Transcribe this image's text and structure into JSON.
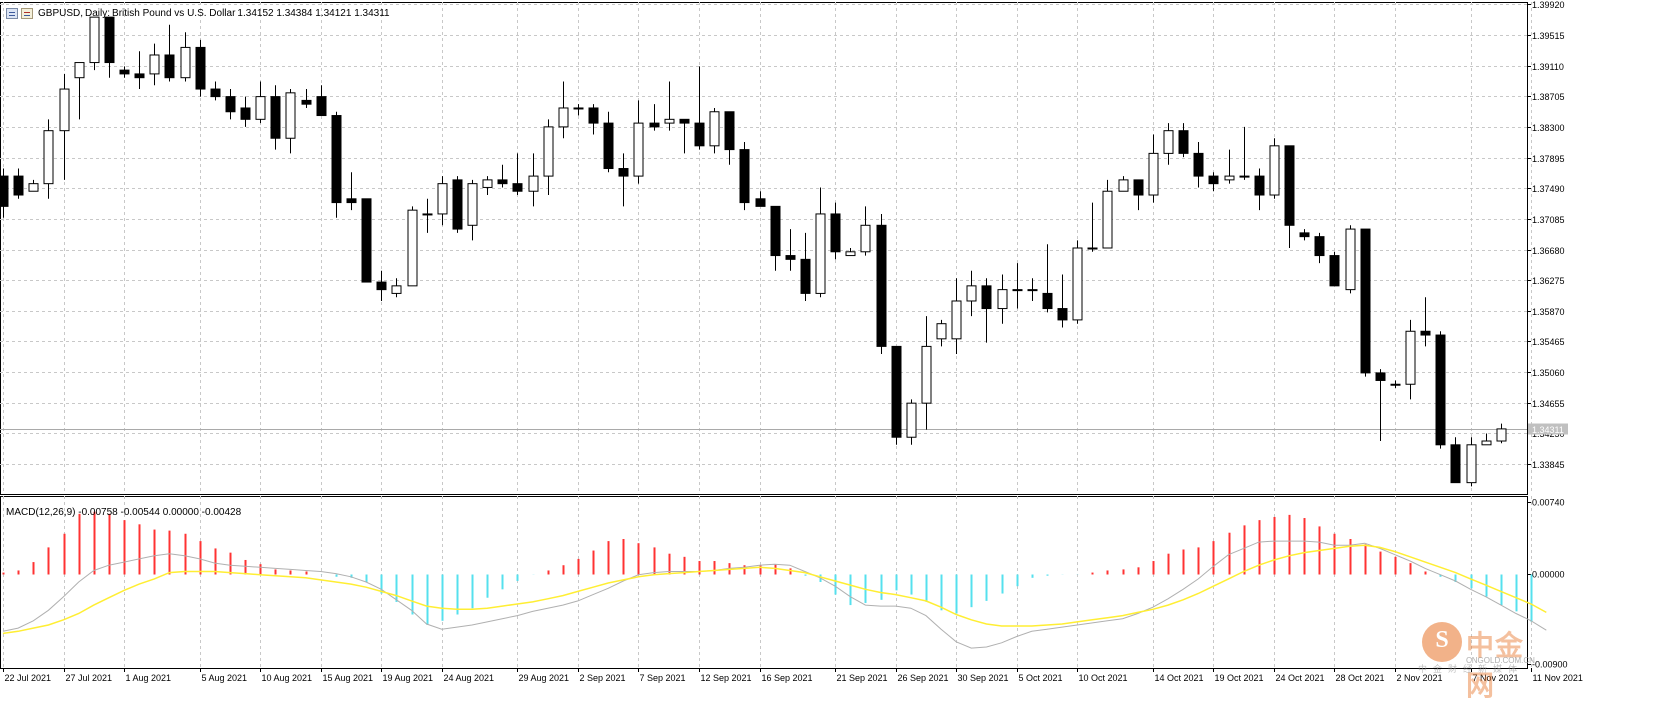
{
  "header": {
    "symbol": "GBPUSD,",
    "timeframe": "Daily:",
    "description": "British Pound vs U.S. Dollar",
    "ohlc": "1.34152 1.34384 1.34121 1.34311"
  },
  "macd_header": "MACD(12,26,9) -0.00758 -0.00544 0.00000 -0.00428",
  "price_axis": {
    "labels": [
      "1.39920",
      "1.39515",
      "1.39110",
      "1.38705",
      "1.38300",
      "1.37895",
      "1.37490",
      "1.37085",
      "1.36680",
      "1.36275",
      "1.35870",
      "1.35465",
      "1.35060",
      "1.34655",
      "1.34250",
      "1.33845"
    ],
    "current": "1.34311"
  },
  "macd_axis": {
    "labels": [
      "0.00740",
      "0.00000",
      "-0.00900"
    ]
  },
  "date_axis": [
    "22 Jul 2021",
    "27 Jul 2021",
    "1 Aug 2021",
    "5 Aug 2021",
    "10 Aug 2021",
    "15 Aug 2021",
    "19 Aug 2021",
    "24 Aug 2021",
    "29 Aug 2021",
    "2 Sep 2021",
    "7 Sep 2021",
    "12 Sep 2021",
    "16 Sep 2021",
    "21 Sep 2021",
    "26 Sep 2021",
    "30 Sep 2021",
    "5 Oct 2021",
    "10 Oct 2021",
    "14 Oct 2021",
    "19 Oct 2021",
    "24 Oct 2021",
    "28 Oct 2021",
    "2 Nov 2021",
    "7 Nov 2021",
    "11 Nov 2021"
  ],
  "colors": {
    "macd_pos": "#ff3333",
    "macd_neg": "#55e0ee",
    "signal": "#ffee33",
    "macd_line": "#b0b0b0",
    "grid": "#c8c8c8"
  },
  "logo": {
    "name": "中金网",
    "site": "CNGOLD.COM.CN",
    "sub": "中金财经新媒体",
    "icon": "cngold-logo-icon"
  },
  "chart_data": [
    {
      "type": "candlestick",
      "title": "GBPUSD, Daily: British Pound vs U.S. Dollar",
      "ylim": [
        1.3345,
        1.3995
      ],
      "candles": [
        {
          "o": 1.3765,
          "h": 1.3775,
          "l": 1.371,
          "c": 1.3725
        },
        {
          "o": 1.3765,
          "h": 1.3775,
          "l": 1.3735,
          "c": 1.374
        },
        {
          "o": 1.3745,
          "h": 1.376,
          "l": 1.3745,
          "c": 1.3755
        },
        {
          "o": 1.3755,
          "h": 1.384,
          "l": 1.3735,
          "c": 1.3825
        },
        {
          "o": 1.3825,
          "h": 1.39,
          "l": 1.376,
          "c": 1.388
        },
        {
          "o": 1.3895,
          "h": 1.3915,
          "l": 1.384,
          "c": 1.3915
        },
        {
          "o": 1.3915,
          "h": 1.3975,
          "l": 1.3905,
          "c": 1.3975
        },
        {
          "o": 1.3975,
          "h": 1.3975,
          "l": 1.3895,
          "c": 1.3915
        },
        {
          "o": 1.3905,
          "h": 1.391,
          "l": 1.3895,
          "c": 1.39
        },
        {
          "o": 1.39,
          "h": 1.393,
          "l": 1.388,
          "c": 1.3895
        },
        {
          "o": 1.39,
          "h": 1.394,
          "l": 1.3885,
          "c": 1.3925
        },
        {
          "o": 1.3925,
          "h": 1.3965,
          "l": 1.389,
          "c": 1.3895
        },
        {
          "o": 1.3895,
          "h": 1.3955,
          "l": 1.389,
          "c": 1.3935
        },
        {
          "o": 1.3935,
          "h": 1.3945,
          "l": 1.387,
          "c": 1.388
        },
        {
          "o": 1.388,
          "h": 1.389,
          "l": 1.3865,
          "c": 1.387
        },
        {
          "o": 1.387,
          "h": 1.388,
          "l": 1.384,
          "c": 1.385
        },
        {
          "o": 1.3855,
          "h": 1.387,
          "l": 1.383,
          "c": 1.384
        },
        {
          "o": 1.384,
          "h": 1.389,
          "l": 1.3835,
          "c": 1.387
        },
        {
          "o": 1.387,
          "h": 1.3885,
          "l": 1.38,
          "c": 1.3815
        },
        {
          "o": 1.3815,
          "h": 1.388,
          "l": 1.3795,
          "c": 1.3875
        },
        {
          "o": 1.3865,
          "h": 1.388,
          "l": 1.3855,
          "c": 1.386
        },
        {
          "o": 1.387,
          "h": 1.3885,
          "l": 1.3845,
          "c": 1.3845
        },
        {
          "o": 1.3845,
          "h": 1.385,
          "l": 1.371,
          "c": 1.373
        },
        {
          "o": 1.3735,
          "h": 1.377,
          "l": 1.372,
          "c": 1.373
        },
        {
          "o": 1.3735,
          "h": 1.3735,
          "l": 1.3625,
          "c": 1.3625
        },
        {
          "o": 1.3625,
          "h": 1.364,
          "l": 1.36,
          "c": 1.3615
        },
        {
          "o": 1.361,
          "h": 1.363,
          "l": 1.3605,
          "c": 1.362
        },
        {
          "o": 1.362,
          "h": 1.3725,
          "l": 1.362,
          "c": 1.372
        },
        {
          "o": 1.3715,
          "h": 1.3735,
          "l": 1.369,
          "c": 1.3715
        },
        {
          "o": 1.3715,
          "h": 1.3765,
          "l": 1.37,
          "c": 1.3755
        },
        {
          "o": 1.376,
          "h": 1.3765,
          "l": 1.369,
          "c": 1.3695
        },
        {
          "o": 1.37,
          "h": 1.376,
          "l": 1.368,
          "c": 1.3755
        },
        {
          "o": 1.375,
          "h": 1.3765,
          "l": 1.374,
          "c": 1.376
        },
        {
          "o": 1.376,
          "h": 1.378,
          "l": 1.375,
          "c": 1.3755
        },
        {
          "o": 1.3755,
          "h": 1.3795,
          "l": 1.374,
          "c": 1.3745
        },
        {
          "o": 1.3745,
          "h": 1.3795,
          "l": 1.3725,
          "c": 1.3765
        },
        {
          "o": 1.3765,
          "h": 1.384,
          "l": 1.374,
          "c": 1.383
        },
        {
          "o": 1.383,
          "h": 1.389,
          "l": 1.3815,
          "c": 1.3855
        },
        {
          "o": 1.3855,
          "h": 1.386,
          "l": 1.3845,
          "c": 1.3855
        },
        {
          "o": 1.3855,
          "h": 1.386,
          "l": 1.382,
          "c": 1.3835
        },
        {
          "o": 1.3835,
          "h": 1.385,
          "l": 1.377,
          "c": 1.3775
        },
        {
          "o": 1.3775,
          "h": 1.3795,
          "l": 1.3725,
          "c": 1.3765
        },
        {
          "o": 1.3765,
          "h": 1.3865,
          "l": 1.3755,
          "c": 1.3835
        },
        {
          "o": 1.3835,
          "h": 1.386,
          "l": 1.3825,
          "c": 1.383
        },
        {
          "o": 1.3835,
          "h": 1.389,
          "l": 1.3825,
          "c": 1.384
        },
        {
          "o": 1.384,
          "h": 1.384,
          "l": 1.3795,
          "c": 1.3835
        },
        {
          "o": 1.3835,
          "h": 1.391,
          "l": 1.38,
          "c": 1.3805
        },
        {
          "o": 1.3805,
          "h": 1.3855,
          "l": 1.3795,
          "c": 1.385
        },
        {
          "o": 1.385,
          "h": 1.385,
          "l": 1.378,
          "c": 1.38
        },
        {
          "o": 1.38,
          "h": 1.381,
          "l": 1.372,
          "c": 1.373
        },
        {
          "o": 1.3735,
          "h": 1.3745,
          "l": 1.3725,
          "c": 1.3725
        },
        {
          "o": 1.3725,
          "h": 1.3725,
          "l": 1.364,
          "c": 1.366
        },
        {
          "o": 1.366,
          "h": 1.3695,
          "l": 1.364,
          "c": 1.3655
        },
        {
          "o": 1.3655,
          "h": 1.369,
          "l": 1.36,
          "c": 1.361
        },
        {
          "o": 1.361,
          "h": 1.375,
          "l": 1.3605,
          "c": 1.3715
        },
        {
          "o": 1.3715,
          "h": 1.373,
          "l": 1.3655,
          "c": 1.3665
        },
        {
          "o": 1.366,
          "h": 1.367,
          "l": 1.366,
          "c": 1.3665
        },
        {
          "o": 1.3665,
          "h": 1.3725,
          "l": 1.366,
          "c": 1.37
        },
        {
          "o": 1.37,
          "h": 1.3715,
          "l": 1.353,
          "c": 1.354
        },
        {
          "o": 1.354,
          "h": 1.354,
          "l": 1.341,
          "c": 1.342
        },
        {
          "o": 1.342,
          "h": 1.347,
          "l": 1.341,
          "c": 1.3465
        },
        {
          "o": 1.3465,
          "h": 1.358,
          "l": 1.343,
          "c": 1.354
        },
        {
          "o": 1.355,
          "h": 1.3575,
          "l": 1.354,
          "c": 1.357
        },
        {
          "o": 1.355,
          "h": 1.363,
          "l": 1.353,
          "c": 1.36
        },
        {
          "o": 1.36,
          "h": 1.364,
          "l": 1.358,
          "c": 1.362
        },
        {
          "o": 1.362,
          "h": 1.363,
          "l": 1.3545,
          "c": 1.359
        },
        {
          "o": 1.359,
          "h": 1.3635,
          "l": 1.357,
          "c": 1.3615
        },
        {
          "o": 1.3615,
          "h": 1.365,
          "l": 1.359,
          "c": 1.3615
        },
        {
          "o": 1.3615,
          "h": 1.363,
          "l": 1.36,
          "c": 1.3615
        },
        {
          "o": 1.361,
          "h": 1.3675,
          "l": 1.3585,
          "c": 1.359
        },
        {
          "o": 1.359,
          "h": 1.3635,
          "l": 1.3565,
          "c": 1.3575
        },
        {
          "o": 1.3575,
          "h": 1.368,
          "l": 1.357,
          "c": 1.367
        },
        {
          "o": 1.367,
          "h": 1.373,
          "l": 1.3665,
          "c": 1.367
        },
        {
          "o": 1.367,
          "h": 1.376,
          "l": 1.367,
          "c": 1.3745
        },
        {
          "o": 1.3745,
          "h": 1.3765,
          "l": 1.3745,
          "c": 1.376
        },
        {
          "o": 1.376,
          "h": 1.376,
          "l": 1.372,
          "c": 1.374
        },
        {
          "o": 1.374,
          "h": 1.382,
          "l": 1.373,
          "c": 1.3795
        },
        {
          "o": 1.3795,
          "h": 1.3835,
          "l": 1.378,
          "c": 1.3825
        },
        {
          "o": 1.3825,
          "h": 1.3835,
          "l": 1.379,
          "c": 1.3795
        },
        {
          "o": 1.3795,
          "h": 1.381,
          "l": 1.375,
          "c": 1.3765
        },
        {
          "o": 1.3765,
          "h": 1.377,
          "l": 1.3745,
          "c": 1.3755
        },
        {
          "o": 1.376,
          "h": 1.38,
          "l": 1.3755,
          "c": 1.3765
        },
        {
          "o": 1.3765,
          "h": 1.383,
          "l": 1.376,
          "c": 1.3765
        },
        {
          "o": 1.3765,
          "h": 1.3775,
          "l": 1.372,
          "c": 1.374
        },
        {
          "o": 1.374,
          "h": 1.3815,
          "l": 1.3735,
          "c": 1.3805
        },
        {
          "o": 1.3805,
          "h": 1.3805,
          "l": 1.367,
          "c": 1.37
        },
        {
          "o": 1.369,
          "h": 1.3695,
          "l": 1.368,
          "c": 1.3685
        },
        {
          "o": 1.3685,
          "h": 1.369,
          "l": 1.365,
          "c": 1.366
        },
        {
          "o": 1.366,
          "h": 1.3665,
          "l": 1.362,
          "c": 1.362
        },
        {
          "o": 1.3615,
          "h": 1.37,
          "l": 1.361,
          "c": 1.3695
        },
        {
          "o": 1.3695,
          "h": 1.3695,
          "l": 1.35,
          "c": 1.3505
        },
        {
          "o": 1.3505,
          "h": 1.351,
          "l": 1.3415,
          "c": 1.3495
        },
        {
          "o": 1.349,
          "h": 1.3495,
          "l": 1.3485,
          "c": 1.349
        },
        {
          "o": 1.349,
          "h": 1.3575,
          "l": 1.347,
          "c": 1.356
        },
        {
          "o": 1.356,
          "h": 1.3605,
          "l": 1.354,
          "c": 1.3555
        },
        {
          "o": 1.3555,
          "h": 1.356,
          "l": 1.3405,
          "c": 1.341
        },
        {
          "o": 1.341,
          "h": 1.342,
          "l": 1.336,
          "c": 1.336
        },
        {
          "o": 1.336,
          "h": 1.342,
          "l": 1.3355,
          "c": 1.341
        },
        {
          "o": 1.341,
          "h": 1.3425,
          "l": 1.341,
          "c": 1.3415
        },
        {
          "o": 1.3415,
          "h": 1.3438,
          "l": 1.3412,
          "c": 1.3431
        }
      ]
    },
    {
      "type": "macd",
      "title": "MACD(12,26,9)",
      "ylim": [
        -0.009,
        0.0074
      ],
      "histogram": [
        0.0001,
        0.0003,
        0.0011,
        0.0025,
        0.0038,
        0.0057,
        0.0059,
        0.0057,
        0.0051,
        0.0047,
        0.0042,
        0.0041,
        0.0038,
        0.0031,
        0.0024,
        0.002,
        0.0013,
        0.0009,
        0.0004,
        0.0003,
        0.0002,
        -0.0001,
        -0.0003,
        -0.0004,
        -0.0008,
        -0.0019,
        -0.0027,
        -0.0039,
        -0.0049,
        -0.0045,
        -0.0039,
        -0.0033,
        -0.0023,
        -0.0015,
        -0.0007,
        -0.0001,
        0.0003,
        0.0008,
        0.0014,
        0.0022,
        0.0031,
        0.0033,
        0.0029,
        0.0025,
        0.0019,
        0.0016,
        0.0012,
        0.0012,
        0.001,
        0.0008,
        0.0008,
        0.0009,
        0.0005,
        -0.0002,
        -0.0008,
        -0.002,
        -0.003,
        -0.0028,
        -0.0025,
        -0.0016,
        -0.002,
        -0.0027,
        -0.0035,
        -0.0038,
        -0.0032,
        -0.0026,
        -0.0019,
        -0.0012,
        -0.0004,
        -0.0002,
        -0.0001,
        -0.0001,
        0.0001,
        0.0003,
        0.0004,
        0.0006,
        0.0012,
        0.0019,
        0.0023,
        0.0025,
        0.0031,
        0.0039,
        0.0046,
        0.0051,
        0.0054,
        0.0056,
        0.0053,
        0.0045,
        0.0038,
        0.0033,
        0.0028,
        0.0021,
        0.0016,
        0.001,
        0.0002,
        -0.0003,
        -0.0008,
        -0.0014,
        -0.0022,
        -0.003,
        -0.0036,
        -0.0046
      ],
      "macd": [
        -0.0055,
        -0.0052,
        -0.0045,
        -0.0035,
        -0.0022,
        -0.0008,
        0.0003,
        0.0008,
        0.0011,
        0.0014,
        0.0017,
        0.0019,
        0.0017,
        0.0014,
        0.001,
        0.0008,
        0.0007,
        0.0006,
        0.0005,
        0.0004,
        0.0003,
        0.0002,
        0.0,
        -0.0003,
        -0.0008,
        -0.0015,
        -0.0025,
        -0.0035,
        -0.0048,
        -0.0053,
        -0.0051,
        -0.0049,
        -0.0046,
        -0.0043,
        -0.004,
        -0.0036,
        -0.0033,
        -0.003,
        -0.0026,
        -0.002,
        -0.0014,
        -0.0007,
        -0.0001,
        0.0001,
        0.0002,
        0.0002,
        0.0002,
        0.0003,
        0.0005,
        0.0006,
        0.0008,
        0.0009,
        0.0008,
        0.0002,
        -0.0004,
        -0.0012,
        -0.0022,
        -0.003,
        -0.0031,
        -0.0031,
        -0.0033,
        -0.004,
        -0.0053,
        -0.0065,
        -0.0071,
        -0.007,
        -0.0066,
        -0.006,
        -0.0055,
        -0.0053,
        -0.0051,
        -0.0049,
        -0.0047,
        -0.0045,
        -0.0043,
        -0.0038,
        -0.0032,
        -0.0024,
        -0.0015,
        -0.0005,
        0.0007,
        0.0018,
        0.0024,
        0.003,
        0.0031,
        0.0031,
        0.0031,
        0.003,
        0.0027,
        0.0027,
        0.0029,
        0.0024,
        0.0018,
        0.0012,
        0.0005,
        -0.0001,
        -0.0007,
        -0.0015,
        -0.0022,
        -0.003,
        -0.0038,
        -0.0045,
        -0.0054
      ],
      "signal": [
        -0.0057,
        -0.0055,
        -0.0052,
        -0.0049,
        -0.0044,
        -0.0038,
        -0.003,
        -0.0023,
        -0.0016,
        -0.001,
        -0.0005,
        0.0001,
        0.0002,
        0.0002,
        0.0002,
        0.0001,
        0.0,
        -0.0001,
        -0.0002,
        -0.0003,
        -0.0004,
        -0.0006,
        -0.0008,
        -0.001,
        -0.0013,
        -0.0017,
        -0.0021,
        -0.0026,
        -0.0031,
        -0.0033,
        -0.0034,
        -0.0034,
        -0.0033,
        -0.0031,
        -0.0029,
        -0.0027,
        -0.0024,
        -0.0021,
        -0.0017,
        -0.0013,
        -0.0009,
        -0.0006,
        -0.0003,
        -0.0001,
        0.0,
        0.0001,
        0.0002,
        0.0003,
        0.0004,
        0.0005,
        0.0006,
        0.0005,
        0.0003,
        0.0001,
        -0.0003,
        -0.0007,
        -0.0011,
        -0.0015,
        -0.0018,
        -0.002,
        -0.0023,
        -0.0026,
        -0.0032,
        -0.0039,
        -0.0044,
        -0.0048,
        -0.005,
        -0.005,
        -0.005,
        -0.0049,
        -0.0048,
        -0.0046,
        -0.0044,
        -0.0042,
        -0.004,
        -0.0037,
        -0.0034,
        -0.003,
        -0.0025,
        -0.0019,
        -0.0012,
        -0.0005,
        0.0002,
        0.0008,
        0.0013,
        0.0017,
        0.002,
        0.0022,
        0.0024,
        0.0026,
        0.0027,
        0.0025,
        0.0021,
        0.0016,
        0.0011,
        0.0006,
        0.0001,
        -0.0005,
        -0.0011,
        -0.0017,
        -0.0023,
        -0.0029,
        -0.0037
      ]
    }
  ]
}
